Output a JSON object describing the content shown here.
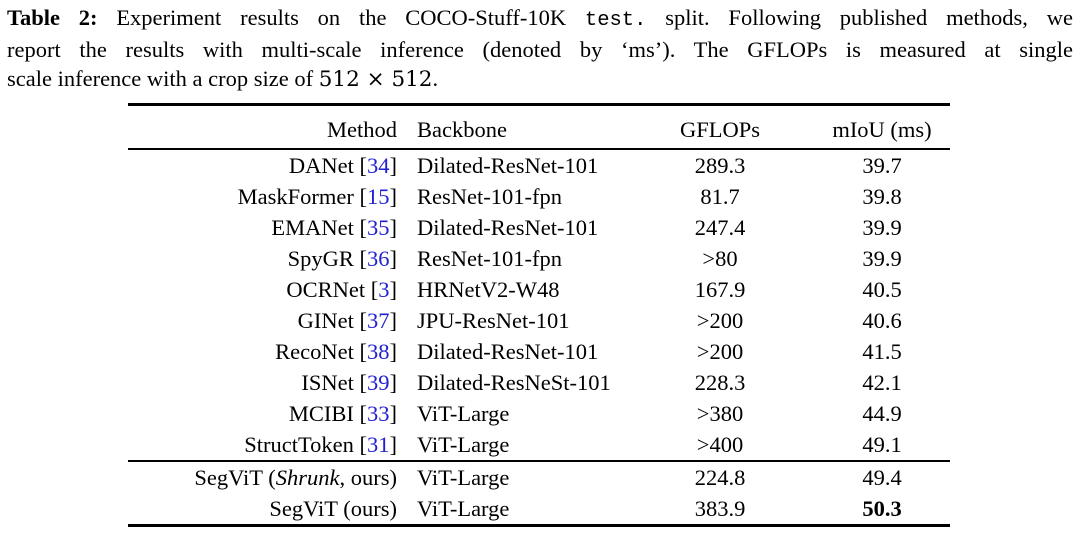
{
  "caption": {
    "label": "Table 2:",
    "line1_a": "Experiment results on the COCO-Stuff-10K",
    "line1_code": "test.",
    "line1_b": "split. Following published methods, we",
    "line2": "report the results with multi-scale inference (denoted by ‘ms’). The GFLOPs is measured at single",
    "line3_a": "scale inference with a crop size of",
    "line3_math": "512 × 512",
    "line3_period": "."
  },
  "table": {
    "headers": {
      "method": "Method",
      "backbone": "Backbone",
      "gflops": "GFLOPs",
      "miou": "mIoU (ms)"
    },
    "punct": {
      "open": "[",
      "close": "]"
    },
    "rows": [
      {
        "method": "DANet",
        "cite": "34",
        "backbone": "Dilated-ResNet-101",
        "gflops": "289.3",
        "miou": "39.7"
      },
      {
        "method": "MaskFormer",
        "cite": "15",
        "backbone": "ResNet-101-fpn",
        "gflops": "81.7",
        "miou": "39.8"
      },
      {
        "method": "EMANet",
        "cite": "35",
        "backbone": "Dilated-ResNet-101",
        "gflops": "247.4",
        "miou": "39.9"
      },
      {
        "method": "SpyGR",
        "cite": "36",
        "backbone": "ResNet-101-fpn",
        "gflops": ">80",
        "miou": "39.9"
      },
      {
        "method": "OCRNet",
        "cite": "3",
        "backbone": "HRNetV2-W48",
        "gflops": "167.9",
        "miou": "40.5"
      },
      {
        "method": "GINet",
        "cite": "37",
        "backbone": "JPU-ResNet-101",
        "gflops": ">200",
        "miou": "40.6"
      },
      {
        "method": "RecoNet",
        "cite": "38",
        "backbone": "Dilated-ResNet-101",
        "gflops": ">200",
        "miou": "41.5"
      },
      {
        "method": "ISNet",
        "cite": "39",
        "backbone": "Dilated-ResNeSt-101",
        "gflops": "228.3",
        "miou": "42.1"
      },
      {
        "method": "MCIBI",
        "cite": "33",
        "backbone": "ViT-Large",
        "gflops": ">380",
        "miou": "44.9"
      },
      {
        "method": "StructToken",
        "cite": "31",
        "backbone": "ViT-Large",
        "gflops": ">400",
        "miou": "49.1"
      }
    ],
    "ours": [
      {
        "pre": "SegViT (",
        "em": "Shrunk",
        "post": ", ours)",
        "backbone": "ViT-Large",
        "gflops": "224.8",
        "miou": "49.4"
      },
      {
        "pre": "SegViT (ours)",
        "em": "",
        "post": "",
        "backbone": "ViT-Large",
        "gflops": "383.9",
        "miou": "50.3"
      }
    ]
  },
  "colors": {
    "citation_blue": "#2121d1",
    "text": "#000000",
    "rule": "#000000"
  }
}
